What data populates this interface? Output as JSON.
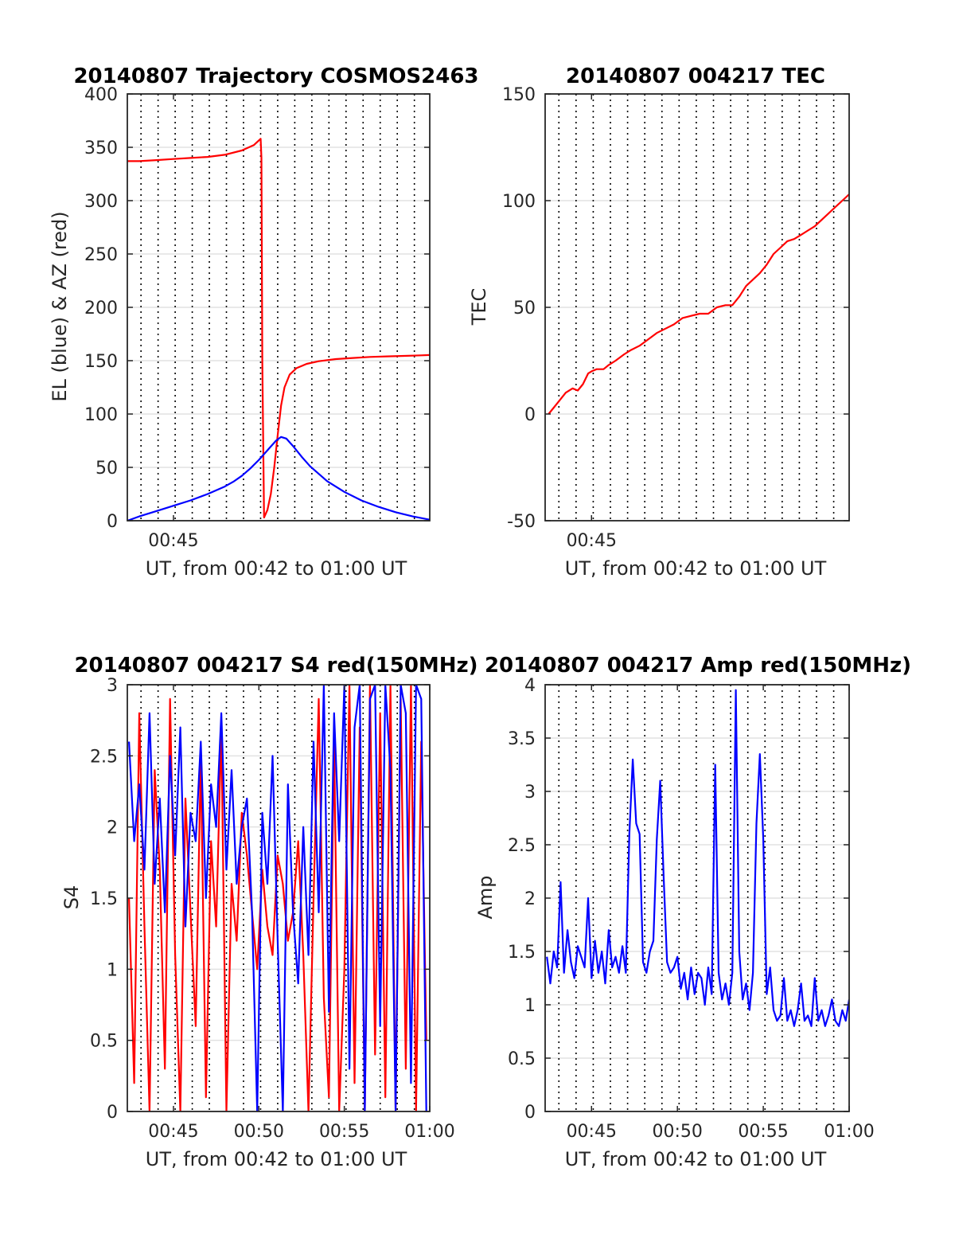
{
  "figure": {
    "background": "#ffffff"
  },
  "chart_data": [
    {
      "id": "traj",
      "type": "line",
      "title": "20140807 Trajectory COSMOS2463",
      "xlabel": "UT, from 00:42 to 01:00 UT",
      "ylabel": "EL (blue) & AZ (red)",
      "xlim": [
        42.3,
        60.0
      ],
      "ylim": [
        0,
        400
      ],
      "xticks": [
        45
      ],
      "xtick_labels": [
        "00:45"
      ],
      "yticks": [
        0,
        50,
        100,
        150,
        200,
        250,
        300,
        350,
        400
      ],
      "ytick_labels": [
        "0",
        "50",
        "100",
        "150",
        "200",
        "250",
        "300",
        "350",
        "400"
      ],
      "dotted_vlines": [
        43.1,
        44.1,
        45.1,
        46.1,
        47.1,
        48.1,
        49.1,
        50.1,
        51.1,
        52.1,
        53.1,
        54.1,
        55.1,
        56.1,
        57.1,
        58.1,
        59.1
      ],
      "grid": "horizontal",
      "series": [
        {
          "color": "#ff0000",
          "x": [
            42.3,
            43.0,
            44.0,
            45.0,
            46.0,
            47.0,
            48.0,
            49.0,
            49.7,
            50.1,
            50.15,
            50.2,
            50.3,
            50.5,
            50.7,
            50.9,
            51.1,
            51.3,
            51.5,
            51.8,
            52.2,
            52.8,
            53.5,
            54.5,
            55.5,
            56.5,
            57.5,
            58.5,
            59.5,
            60.0
          ],
          "y": [
            337,
            337,
            338,
            339,
            340,
            341,
            343,
            347,
            352,
            358,
            340,
            150,
            3,
            10,
            25,
            50,
            80,
            108,
            125,
            137,
            143,
            147,
            149.5,
            151.5,
            152.5,
            153.5,
            154,
            154.5,
            155,
            155.3
          ]
        },
        {
          "color": "#0000ff",
          "x": [
            42.3,
            43.0,
            44.0,
            45.0,
            46.0,
            47.0,
            48.0,
            48.5,
            49.0,
            49.5,
            50.0,
            50.5,
            51.0,
            51.3,
            51.6,
            52.0,
            52.5,
            53.0,
            54.0,
            55.0,
            56.0,
            57.0,
            58.0,
            59.0,
            60.0
          ],
          "y": [
            0,
            4,
            9,
            14,
            19,
            25,
            32,
            36.5,
            42,
            49,
            57,
            66,
            75,
            78.5,
            77,
            70,
            60,
            51,
            37,
            27,
            19,
            13,
            8,
            4,
            1
          ]
        }
      ]
    },
    {
      "id": "tec",
      "type": "line",
      "title": "20140807 004217 TEC",
      "xlabel": "UT, from 00:42 to 01:00 UT",
      "ylabel": "TEC",
      "xlim": [
        42.3,
        60.0
      ],
      "ylim": [
        -50,
        150
      ],
      "xticks": [
        45
      ],
      "xtick_labels": [
        "00:45"
      ],
      "yticks": [
        -50,
        0,
        50,
        100,
        150
      ],
      "ytick_labels": [
        "-50",
        "0",
        "50",
        "100",
        "150"
      ],
      "dotted_vlines": [
        43.1,
        44.1,
        45.1,
        46.1,
        47.1,
        48.1,
        49.1,
        50.1,
        51.1,
        52.1,
        53.1,
        54.1,
        55.1,
        56.1,
        57.1,
        58.1,
        59.1
      ],
      "grid": "horizontal",
      "series": [
        {
          "color": "#ff0000",
          "x": [
            42.5,
            42.8,
            43.1,
            43.5,
            43.9,
            44.2,
            44.5,
            44.8,
            45.0,
            45.3,
            45.7,
            46.0,
            46.4,
            46.9,
            47.3,
            47.8,
            48.3,
            48.8,
            49.3,
            49.8,
            50.3,
            50.8,
            51.3,
            51.8,
            52.3,
            52.8,
            53.2,
            53.6,
            54.0,
            54.4,
            54.8,
            55.2,
            55.6,
            56.0,
            56.4,
            56.8,
            57.2,
            57.6,
            58.0,
            58.4,
            58.8,
            59.2,
            59.6,
            60.0
          ],
          "y": [
            0,
            3,
            6,
            10,
            12,
            11,
            14,
            19,
            20,
            21,
            21,
            23,
            25,
            28,
            30,
            32,
            35,
            38,
            40,
            42,
            45,
            46,
            47,
            47,
            50,
            51,
            51,
            55,
            60,
            63,
            66,
            70,
            75,
            78,
            81,
            82,
            84,
            86,
            88,
            91,
            94,
            97,
            100,
            103
          ]
        }
      ]
    },
    {
      "id": "s4",
      "type": "line",
      "title": "20140807 004217 S4 red(150MHz)",
      "xlabel": "UT, from 00:42 to 01:00 UT",
      "ylabel": "S4",
      "xlim": [
        42.3,
        60.0
      ],
      "ylim": [
        0,
        3
      ],
      "xticks": [
        45,
        50,
        55,
        60
      ],
      "xtick_labels": [
        "00:45",
        "00:50",
        "00:55",
        "01:00"
      ],
      "yticks": [
        0,
        0.5,
        1,
        1.5,
        2,
        2.5,
        3
      ],
      "ytick_labels": [
        "0",
        "0.5",
        "1",
        "1.5",
        "2",
        "2.5",
        "3"
      ],
      "dotted_vlines": [
        43.1,
        44.1,
        45.1,
        46.1,
        47.1,
        48.1,
        49.1,
        50.1,
        51.1,
        52.1,
        53.1,
        54.1,
        55.1,
        56.1,
        57.1,
        58.1,
        59.1
      ],
      "grid": "horizontal",
      "series": [
        {
          "color": "#ff0000",
          "x": [
            42.4,
            42.7,
            43.0,
            43.3,
            43.6,
            43.9,
            44.2,
            44.5,
            44.8,
            45.1,
            45.4,
            45.7,
            46.0,
            46.3,
            46.6,
            46.9,
            47.2,
            47.5,
            47.8,
            48.1,
            48.4,
            48.7,
            49.0,
            49.3,
            49.6,
            49.9,
            50.2,
            50.5,
            50.8,
            51.1,
            51.4,
            51.7,
            52.0,
            52.3,
            52.6,
            52.9,
            53.2,
            53.5,
            53.8,
            54.1,
            54.4,
            54.7,
            55.0,
            55.3,
            55.6,
            55.9,
            56.2,
            56.5,
            56.8,
            57.1,
            57.4,
            57.7,
            58.0,
            58.3,
            58.6,
            58.9,
            59.2,
            59.5,
            59.8
          ],
          "y": [
            1.5,
            0.2,
            2.8,
            1.3,
            0.0,
            2.4,
            1.7,
            0.3,
            2.9,
            1.1,
            0.0,
            2.2,
            1.4,
            0.6,
            2.5,
            0.1,
            1.9,
            1.3,
            2.7,
            0.0,
            1.6,
            1.2,
            2.1,
            1.8,
            1.4,
            1.0,
            1.7,
            1.3,
            1.1,
            1.8,
            1.6,
            1.2,
            1.4,
            1.9,
            1.1,
            0.0,
            1.5,
            2.9,
            0.8,
            0.1,
            2.6,
            0.0,
            1.0,
            3.0,
            0.2,
            2.7,
            0.0,
            3.0,
            0.4,
            2.8,
            0.1,
            3.0,
            0.0,
            2.9,
            0.3,
            3.0,
            0.0,
            2.6,
            0.5
          ]
        },
        {
          "color": "#0000ff",
          "x": [
            42.4,
            42.7,
            43.0,
            43.3,
            43.6,
            43.9,
            44.2,
            44.5,
            44.8,
            45.1,
            45.4,
            45.7,
            46.0,
            46.3,
            46.6,
            46.9,
            47.2,
            47.5,
            47.8,
            48.1,
            48.4,
            48.7,
            49.0,
            49.3,
            49.6,
            49.9,
            50.2,
            50.5,
            50.8,
            51.1,
            51.4,
            51.7,
            52.0,
            52.3,
            52.6,
            52.9,
            53.2,
            53.5,
            53.8,
            54.1,
            54.4,
            54.7,
            55.0,
            55.3,
            55.6,
            55.9,
            56.2,
            56.5,
            56.8,
            57.1,
            57.4,
            57.7,
            58.0,
            58.3,
            58.6,
            58.9,
            59.2,
            59.5,
            59.8
          ],
          "y": [
            2.6,
            1.9,
            2.3,
            1.7,
            2.8,
            1.6,
            2.2,
            1.4,
            2.5,
            1.8,
            2.7,
            1.3,
            2.1,
            1.9,
            2.6,
            1.5,
            2.3,
            2.0,
            2.8,
            1.7,
            2.4,
            1.6,
            2.0,
            2.2,
            1.4,
            0.0,
            2.1,
            1.6,
            2.5,
            1.2,
            0.0,
            2.3,
            1.4,
            0.9,
            2.0,
            1.1,
            2.6,
            1.4,
            3.0,
            0.7,
            2.8,
            1.9,
            3.0,
            0.3,
            2.7,
            3.0,
            0.0,
            2.9,
            3.0,
            0.6,
            3.0,
            2.4,
            0.0,
            3.0,
            2.8,
            0.2,
            3.0,
            2.9,
            0.0
          ]
        }
      ]
    },
    {
      "id": "amp",
      "type": "line",
      "title": "20140807 004217 Amp red(150MHz)",
      "xlabel": "UT, from 00:42 to 01:00 UT",
      "ylabel": "Amp",
      "xlim": [
        42.3,
        60.0
      ],
      "ylim": [
        0,
        4
      ],
      "xticks": [
        45,
        50,
        55,
        60
      ],
      "xtick_labels": [
        "00:45",
        "00:50",
        "00:55",
        "01:00"
      ],
      "yticks": [
        0,
        0.5,
        1,
        1.5,
        2,
        2.5,
        3,
        3.5,
        4
      ],
      "ytick_labels": [
        "0",
        "0.5",
        "1",
        "1.5",
        "2",
        "2.5",
        "3",
        "3.5",
        "4"
      ],
      "dotted_vlines": [
        43.1,
        44.1,
        45.1,
        46.1,
        47.1,
        48.1,
        49.1,
        50.1,
        51.1,
        52.1,
        53.1,
        54.1,
        55.1,
        56.1,
        57.1,
        58.1,
        59.1
      ],
      "grid": "horizontal",
      "series": [
        {
          "color": "#0000ff",
          "x": [
            42.4,
            42.6,
            42.8,
            43.0,
            43.2,
            43.4,
            43.6,
            43.8,
            44.0,
            44.2,
            44.4,
            44.6,
            44.8,
            45.0,
            45.2,
            45.4,
            45.6,
            45.8,
            46.0,
            46.2,
            46.4,
            46.6,
            46.8,
            47.0,
            47.2,
            47.4,
            47.6,
            47.8,
            48.0,
            48.2,
            48.4,
            48.6,
            48.8,
            49.0,
            49.2,
            49.4,
            49.6,
            49.8,
            50.0,
            50.2,
            50.4,
            50.6,
            50.8,
            51.0,
            51.2,
            51.4,
            51.6,
            51.8,
            52.0,
            52.2,
            52.4,
            52.6,
            52.8,
            53.0,
            53.2,
            53.4,
            53.6,
            53.8,
            54.0,
            54.2,
            54.4,
            54.6,
            54.8,
            55.0,
            55.2,
            55.4,
            55.6,
            55.8,
            56.0,
            56.2,
            56.4,
            56.6,
            56.8,
            57.0,
            57.2,
            57.4,
            57.6,
            57.8,
            58.0,
            58.2,
            58.4,
            58.6,
            58.8,
            59.0,
            59.2,
            59.4,
            59.6,
            59.8,
            60.0
          ],
          "y": [
            1.45,
            1.2,
            1.5,
            1.35,
            2.15,
            1.3,
            1.7,
            1.4,
            1.25,
            1.55,
            1.45,
            1.35,
            2.0,
            1.25,
            1.6,
            1.3,
            1.5,
            1.2,
            1.7,
            1.35,
            1.45,
            1.3,
            1.55,
            1.3,
            2.6,
            3.3,
            2.7,
            2.6,
            1.4,
            1.3,
            1.5,
            1.6,
            2.55,
            3.1,
            2.2,
            1.4,
            1.3,
            1.35,
            1.45,
            1.15,
            1.3,
            1.05,
            1.35,
            1.1,
            1.3,
            1.25,
            1.0,
            1.35,
            1.1,
            3.25,
            1.3,
            1.05,
            1.2,
            1.0,
            1.3,
            3.95,
            1.5,
            1.05,
            1.2,
            0.95,
            1.3,
            2.7,
            3.35,
            2.55,
            1.1,
            1.35,
            0.95,
            0.85,
            0.9,
            1.25,
            0.85,
            0.95,
            0.8,
            0.95,
            1.2,
            0.85,
            0.9,
            0.8,
            1.25,
            0.85,
            0.95,
            0.8,
            0.9,
            1.05,
            0.85,
            0.8,
            0.95,
            0.85,
            1.05
          ]
        }
      ]
    }
  ]
}
